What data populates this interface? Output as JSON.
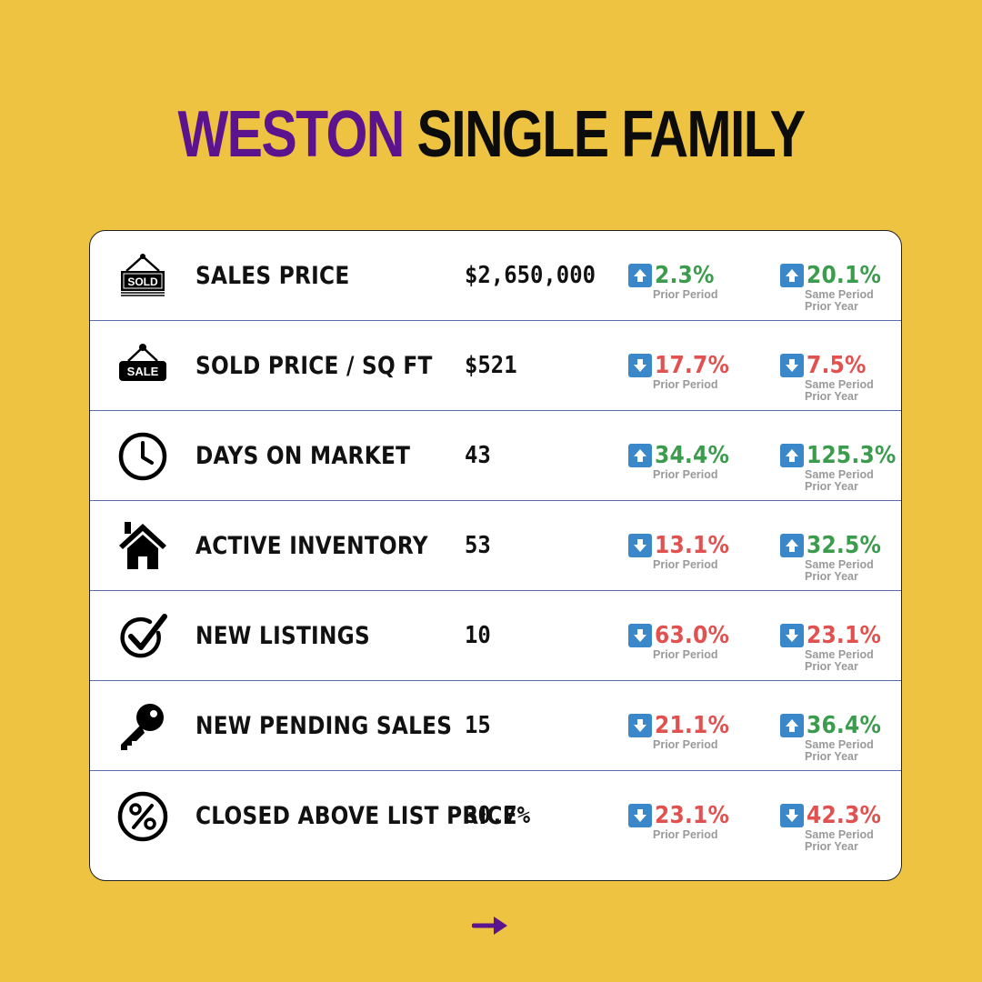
{
  "header": {
    "title_accent": "WESTON",
    "title_main": "SINGLE FAMILY",
    "accent_color": "#5b138e"
  },
  "colors": {
    "background": "#efc342",
    "up": "#3a9c4c",
    "down": "#e0514f",
    "arrow_box": "#3a88c9"
  },
  "period_labels": {
    "prior": "Prior Period",
    "year_line1": "Same Period",
    "year_line2": "Prior Year"
  },
  "rows": [
    {
      "icon": "sold-sign-icon",
      "label": "SALES PRICE",
      "value": "$2,650,000",
      "prior": {
        "dir": "up",
        "pct": "2.3%"
      },
      "year": {
        "dir": "up",
        "pct": "20.1%"
      }
    },
    {
      "icon": "sale-tag-icon",
      "label": "SOLD PRICE / SQ FT",
      "value": "$521",
      "prior": {
        "dir": "down",
        "pct": "17.7%"
      },
      "year": {
        "dir": "down",
        "pct": "7.5%"
      }
    },
    {
      "icon": "clock-icon",
      "label": "DAYS ON MARKET",
      "value": "43",
      "prior": {
        "dir": "up",
        "pct": "34.4%"
      },
      "year": {
        "dir": "up",
        "pct": "125.3%"
      }
    },
    {
      "icon": "house-icon",
      "label": "ACTIVE INVENTORY",
      "value": "53",
      "prior": {
        "dir": "down",
        "pct": "13.1%"
      },
      "year": {
        "dir": "up",
        "pct": "32.5%"
      }
    },
    {
      "icon": "checkmark-circle-icon",
      "label": "NEW LISTINGS",
      "value": "10",
      "prior": {
        "dir": "down",
        "pct": "63.0%"
      },
      "year": {
        "dir": "down",
        "pct": "23.1%"
      }
    },
    {
      "icon": "key-icon",
      "label": "NEW PENDING SALES",
      "value": "15",
      "prior": {
        "dir": "down",
        "pct": "21.1%"
      },
      "year": {
        "dir": "up",
        "pct": "36.4%"
      }
    },
    {
      "icon": "percent-circle-icon",
      "label": "CLOSED ABOVE LIST PRICE",
      "value": "30.7%",
      "prior": {
        "dir": "down",
        "pct": "23.1%"
      },
      "year": {
        "dir": "down",
        "pct": "42.3%"
      }
    }
  ],
  "footer": {
    "next_icon": "arrow-right-icon"
  }
}
